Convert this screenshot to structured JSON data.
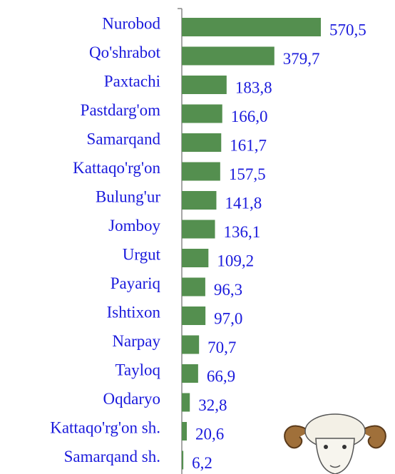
{
  "chart_data": {
    "type": "bar",
    "orientation": "horizontal",
    "categories": [
      "Nurobod",
      "Qo'shrabot",
      "Paxtachi",
      "Pastdarg'om",
      "Samarqand",
      "Kattaqo'rg'on",
      "Bulung'ur",
      "Jomboy",
      "Urgut",
      "Payariq",
      "Ishtixon",
      "Narpay",
      "Tayloq",
      "Oqdaryo",
      "Kattaqo'rg'on sh.",
      "Samarqand sh."
    ],
    "values": [
      570.5,
      379.7,
      183.8,
      166.0,
      161.7,
      157.5,
      141.8,
      136.1,
      109.2,
      96.3,
      97.0,
      70.7,
      66.9,
      32.8,
      20.6,
      6.2
    ],
    "value_labels": [
      "570,5",
      "379,7",
      "183,8",
      "166,0",
      "161,7",
      "157,5",
      "141,8",
      "136,1",
      "109,2",
      "96,3",
      "97,0",
      "70,7",
      "66,9",
      "32,8",
      "20,6",
      "6,2"
    ],
    "color": "#548f4f"
  }
}
